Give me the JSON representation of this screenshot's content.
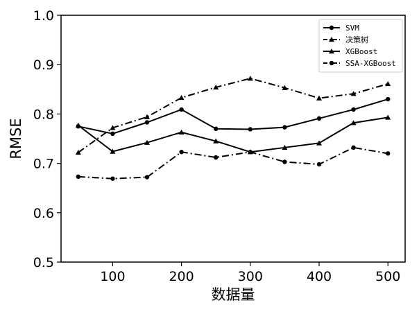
{
  "chart_data": {
    "type": "line",
    "xlabel": "数据量",
    "ylabel": "RMSE",
    "xlim": [
      25,
      525
    ],
    "ylim": [
      0.5,
      1.0
    ],
    "xticks": [
      100,
      200,
      300,
      400,
      500
    ],
    "yticks": [
      0.5,
      0.6,
      0.7,
      0.8,
      0.9,
      1.0
    ],
    "xtick_labels": [
      "100",
      "200",
      "300",
      "400",
      "500"
    ],
    "ytick_labels": [
      "0.5",
      "0.6",
      "0.7",
      "0.8",
      "0.9",
      "1.0"
    ],
    "grid": false,
    "legend_position": "top-right",
    "x": [
      50,
      100,
      150,
      200,
      250,
      300,
      350,
      400,
      450,
      500
    ],
    "series": [
      {
        "name": "SVM",
        "linestyle": "solid",
        "marker": "circle",
        "color": "#000000",
        "values": [
          0.775,
          0.76,
          0.783,
          0.809,
          0.77,
          0.769,
          0.773,
          0.791,
          0.809,
          0.83
        ]
      },
      {
        "name": "决策树",
        "linestyle": "dashdot",
        "marker": "triangle",
        "color": "#000000",
        "values": [
          0.722,
          0.772,
          0.794,
          0.833,
          0.854,
          0.872,
          0.853,
          0.832,
          0.841,
          0.861
        ]
      },
      {
        "name": "XGBoost",
        "linestyle": "solid",
        "marker": "triangle",
        "color": "#000000",
        "values": [
          0.777,
          0.724,
          0.742,
          0.763,
          0.745,
          0.723,
          0.732,
          0.741,
          0.782,
          0.793
        ]
      },
      {
        "name": "SSA-XGBoost",
        "linestyle": "dashdot",
        "marker": "circle",
        "color": "#000000",
        "values": [
          0.673,
          0.669,
          0.672,
          0.723,
          0.712,
          0.723,
          0.703,
          0.698,
          0.732,
          0.72
        ]
      }
    ]
  }
}
